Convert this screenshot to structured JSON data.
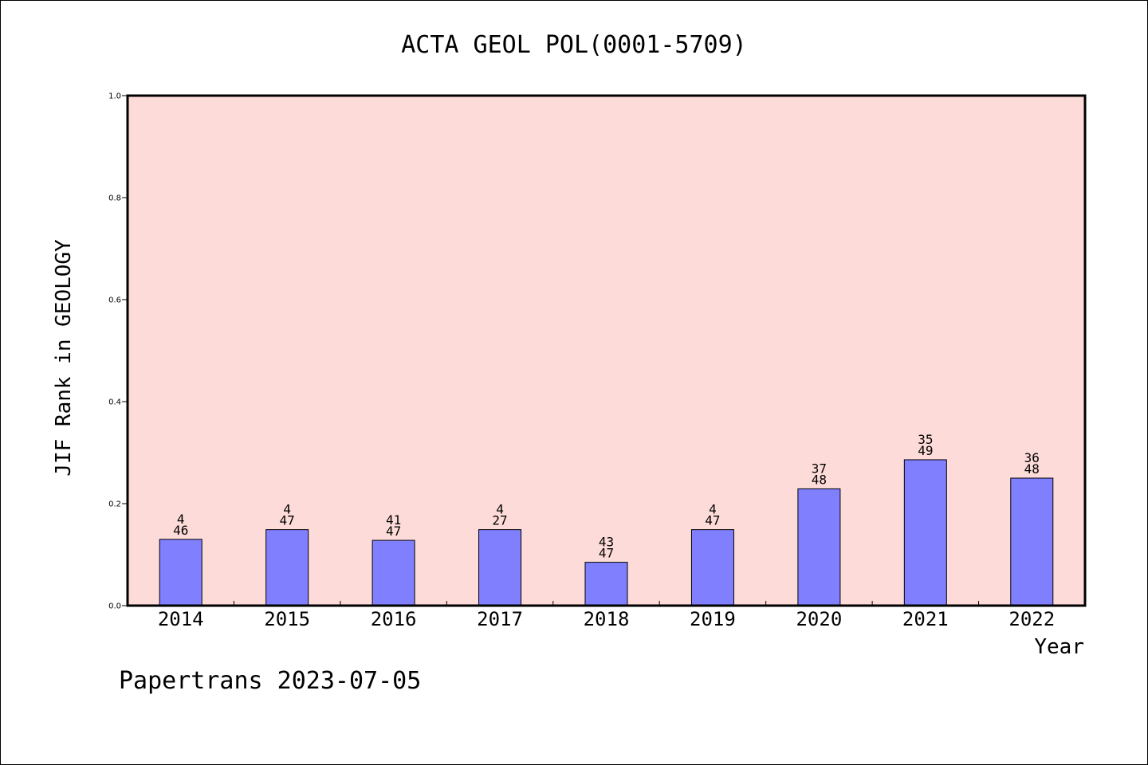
{
  "page": {
    "footer": "Papertrans 2023-07-05"
  },
  "colors": {
    "plot_background": "#fddbd8",
    "bar_fill": "#8080ff",
    "bar_stroke": "#000000",
    "frame": "#000000",
    "text": "#000000"
  },
  "chart_data": {
    "type": "bar",
    "title": "ACTA GEOL POL(0001-5709)",
    "xlabel": "Year",
    "ylabel": "JIF Rank in GEOLOGY",
    "ylim": [
      0,
      1.0
    ],
    "yticks": [
      "0.0",
      "0.2",
      "0.4",
      "0.6",
      "0.8",
      "1.0"
    ],
    "grid": false,
    "categories": [
      "2014",
      "2015",
      "2016",
      "2017",
      "2018",
      "2019",
      "2020",
      "2021",
      "2022"
    ],
    "values": [
      0.13,
      0.149,
      0.128,
      0.149,
      0.085,
      0.149,
      0.229,
      0.286,
      0.25
    ],
    "labels": [
      {
        "top": "4",
        "bottom": "46"
      },
      {
        "top": "4",
        "bottom": "47"
      },
      {
        "top": "41",
        "bottom": "47"
      },
      {
        "top": "4",
        "bottom": "27"
      },
      {
        "top": "43",
        "bottom": "47"
      },
      {
        "top": "4",
        "bottom": "47"
      },
      {
        "top": "37",
        "bottom": "48"
      },
      {
        "top": "35",
        "bottom": "49"
      },
      {
        "top": "36",
        "bottom": "48"
      }
    ]
  }
}
